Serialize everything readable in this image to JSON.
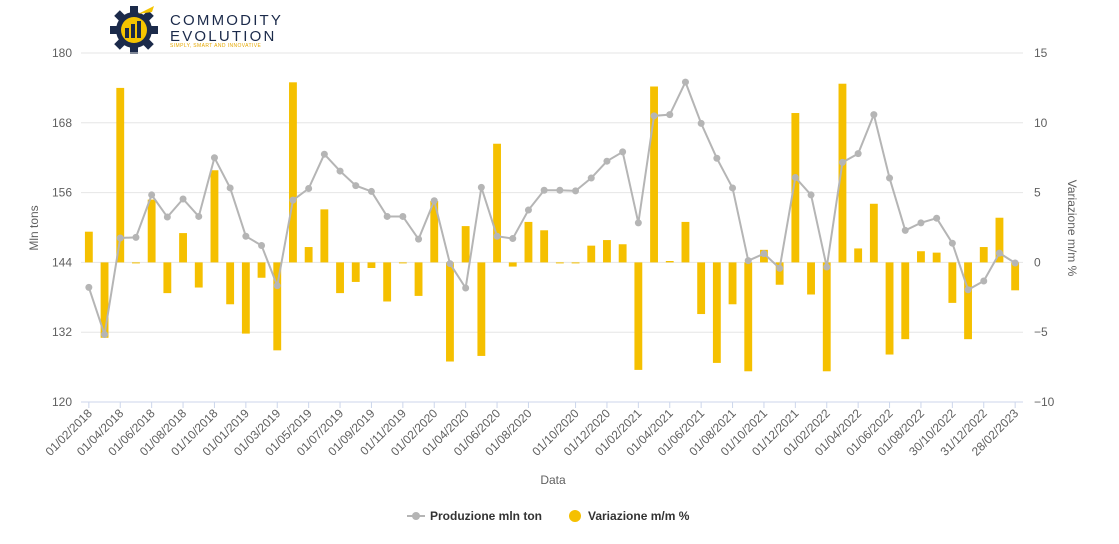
{
  "logo": {
    "line1": "COMMODITY",
    "line2": "EVOLUTION",
    "tagline": "SIMPLY, SMART AND INNOVATIVE",
    "icon": "gear-chart-icon",
    "colors": {
      "gear": "#1b2a4a",
      "accent": "#f5c400"
    }
  },
  "chart_data": {
    "type": "bar+line",
    "xlabel": "Data",
    "ylabel_left": "Mln tons",
    "ylabel_right": "Variazione m/m %",
    "ylim_left": [
      120,
      180
    ],
    "yticks_left": [
      "120",
      "132",
      "144",
      "156",
      "168",
      "180"
    ],
    "ylim_right": [
      -10,
      15
    ],
    "yticks_right": [
      "−10",
      "−5",
      "0",
      "5",
      "10",
      "15"
    ],
    "grid": true,
    "legend_position": "bottom-center",
    "x_tick_labels": [
      "01/02/2018",
      "01/04/2018",
      "01/06/2018",
      "01/08/2018",
      "01/10/2018",
      "01/01/2019",
      "01/03/2019",
      "01/05/2019",
      "01/07/2019",
      "01/09/2019",
      "01/11/2019",
      "01/02/2020",
      "01/04/2020",
      "01/06/2020",
      "01/08/2020",
      "01/10/2020",
      "01/12/2020",
      "01/02/2021",
      "01/04/2021",
      "01/06/2021",
      "01/08/2021",
      "01/10/2021",
      "01/12/2021",
      "01/02/2022",
      "01/04/2022",
      "01/06/2022",
      "01/08/2022",
      "30/10/2022",
      "31/12/2022",
      "28/02/2023"
    ],
    "series": [
      {
        "name": "Produzione mln ton",
        "type": "line",
        "axis": "left",
        "color": "#b5b5b5",
        "values": [
          139.7,
          131.6,
          148.2,
          148.3,
          155.6,
          151.8,
          154.9,
          151.9,
          162.0,
          156.8,
          148.5,
          146.9,
          140.0,
          154.7,
          156.7,
          162.6,
          159.7,
          157.2,
          156.2,
          151.9,
          151.9,
          148.0,
          154.6,
          143.8,
          139.6,
          156.9,
          148.5,
          148.1,
          153.0,
          156.4,
          156.4,
          156.3,
          158.5,
          161.4,
          163.0,
          150.8,
          169.2,
          169.4,
          175.0,
          167.9,
          161.9,
          156.8,
          144.3,
          145.5,
          143.0,
          158.6,
          155.6,
          143.2,
          161.2,
          162.7,
          169.4,
          158.5,
          149.5,
          150.8,
          151.6,
          147.3,
          139.3,
          140.8,
          145.6,
          143.9
        ]
      },
      {
        "name": "Variazione m/m %",
        "type": "bar",
        "axis": "right",
        "color": "#f5c000",
        "values": [
          2.2,
          -5.4,
          12.5,
          0.0,
          4.5,
          -2.2,
          2.1,
          -1.8,
          6.6,
          -3.0,
          -5.1,
          -1.1,
          -6.3,
          12.9,
          1.1,
          3.8,
          -2.2,
          -1.4,
          -0.4,
          -2.8,
          0.0,
          -2.4,
          4.4,
          -7.1,
          2.6,
          -6.7,
          8.5,
          -0.3,
          2.9,
          2.3,
          0.0,
          0.0,
          1.2,
          1.6,
          1.3,
          -7.7,
          12.6,
          0.1,
          2.9,
          -3.7,
          -7.2,
          -3.0,
          -7.8,
          0.9,
          -1.6,
          10.7,
          -2.3,
          -7.8,
          12.8,
          1.0,
          4.2,
          -6.6,
          -5.5,
          0.8,
          0.7,
          -2.9,
          -5.5,
          1.1,
          3.2,
          -2.0
        ]
      }
    ]
  }
}
